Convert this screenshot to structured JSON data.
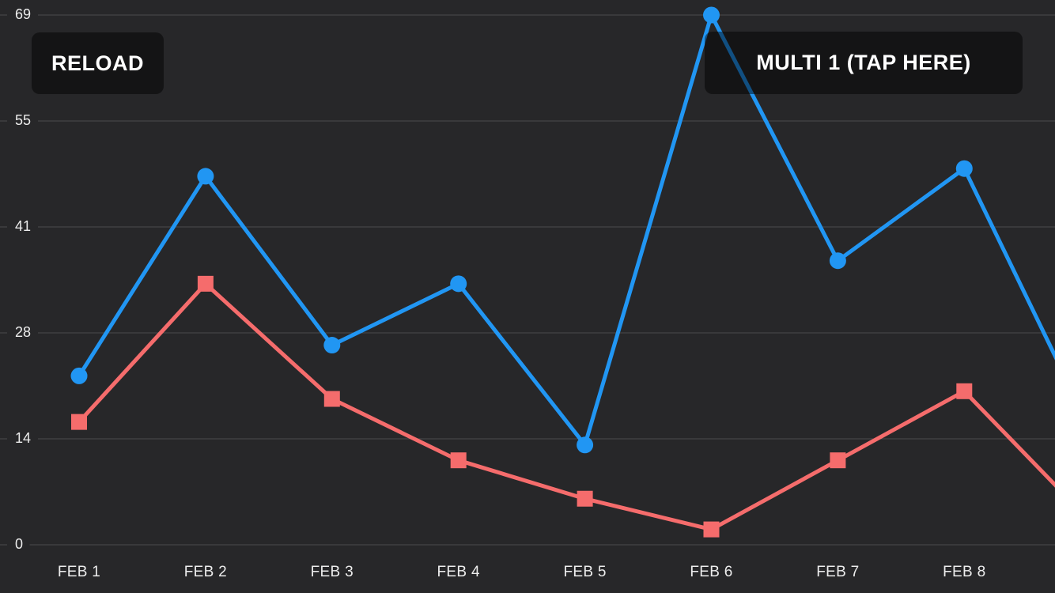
{
  "screen": {
    "background": "#272729",
    "grid_color": "rgba(255,255,255,0.17)",
    "axis_label_color": "#ededed"
  },
  "buttons": {
    "reload_label": "RELOAD",
    "multi1_label": "MULTI 1 (TAP HERE)"
  },
  "chart_data": {
    "type": "line",
    "title": "",
    "xlabel": "",
    "ylabel": "",
    "categories": [
      "FEB 1",
      "FEB 2",
      "FEB 3",
      "FEB 4",
      "FEB 5",
      "FEB 6",
      "FEB 7",
      "FEB 8"
    ],
    "series": [
      {
        "name": "series-1-blue",
        "marker": "circle",
        "color": "#2196f3",
        "values": [
          22,
          48,
          26,
          34,
          13,
          69,
          37,
          49
        ],
        "offscreen_next_value": 15
      },
      {
        "name": "series-2-red",
        "marker": "square",
        "color": "#f56c6c",
        "values": [
          16,
          34,
          19,
          11,
          6,
          2,
          11,
          20
        ],
        "offscreen_next_value": 3
      }
    ],
    "ylim": [
      0,
      69
    ],
    "ytick_labels": [
      "0",
      "14",
      "28",
      "41",
      "55",
      "69"
    ],
    "grid": true,
    "legend_position": "none"
  }
}
